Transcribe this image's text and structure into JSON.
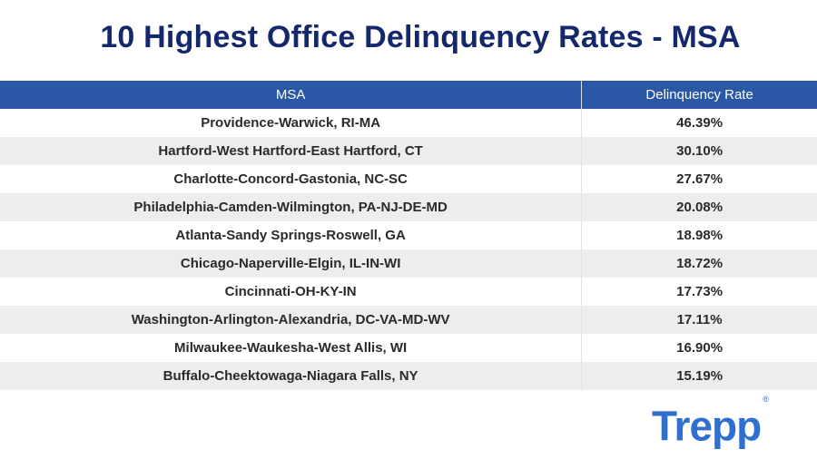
{
  "title": "10 Highest Office Delinquency Rates - MSA",
  "table": {
    "headers": {
      "msa": "MSA",
      "rate": "Delinquency Rate"
    },
    "rows": [
      {
        "msa": "Providence-Warwick, RI-MA",
        "rate": "46.39%"
      },
      {
        "msa": "Hartford-West Hartford-East Hartford, CT",
        "rate": "30.10%"
      },
      {
        "msa": "Charlotte-Concord-Gastonia, NC-SC",
        "rate": "27.67%"
      },
      {
        "msa": "Philadelphia-Camden-Wilmington, PA-NJ-DE-MD",
        "rate": "20.08%"
      },
      {
        "msa": "Atlanta-Sandy Springs-Roswell, GA",
        "rate": "18.98%"
      },
      {
        "msa": "Chicago-Naperville-Elgin, IL-IN-WI",
        "rate": "18.72%"
      },
      {
        "msa": "Cincinnati-OH-KY-IN",
        "rate": "17.73%"
      },
      {
        "msa": "Washington-Arlington-Alexandria, DC-VA-MD-WV",
        "rate": "17.11%"
      },
      {
        "msa": "Milwaukee-Waukesha-West Allis, WI",
        "rate": "16.90%"
      },
      {
        "msa": "Buffalo-Cheektowaga-Niagara Falls, NY",
        "rate": "15.19%"
      }
    ]
  },
  "logo": {
    "text": "Trepp",
    "mark": "®"
  },
  "colors": {
    "title": "#14286b",
    "header_bg": "#2b58a6",
    "logo": "#2f6fcf",
    "stripe": "#ededed"
  }
}
